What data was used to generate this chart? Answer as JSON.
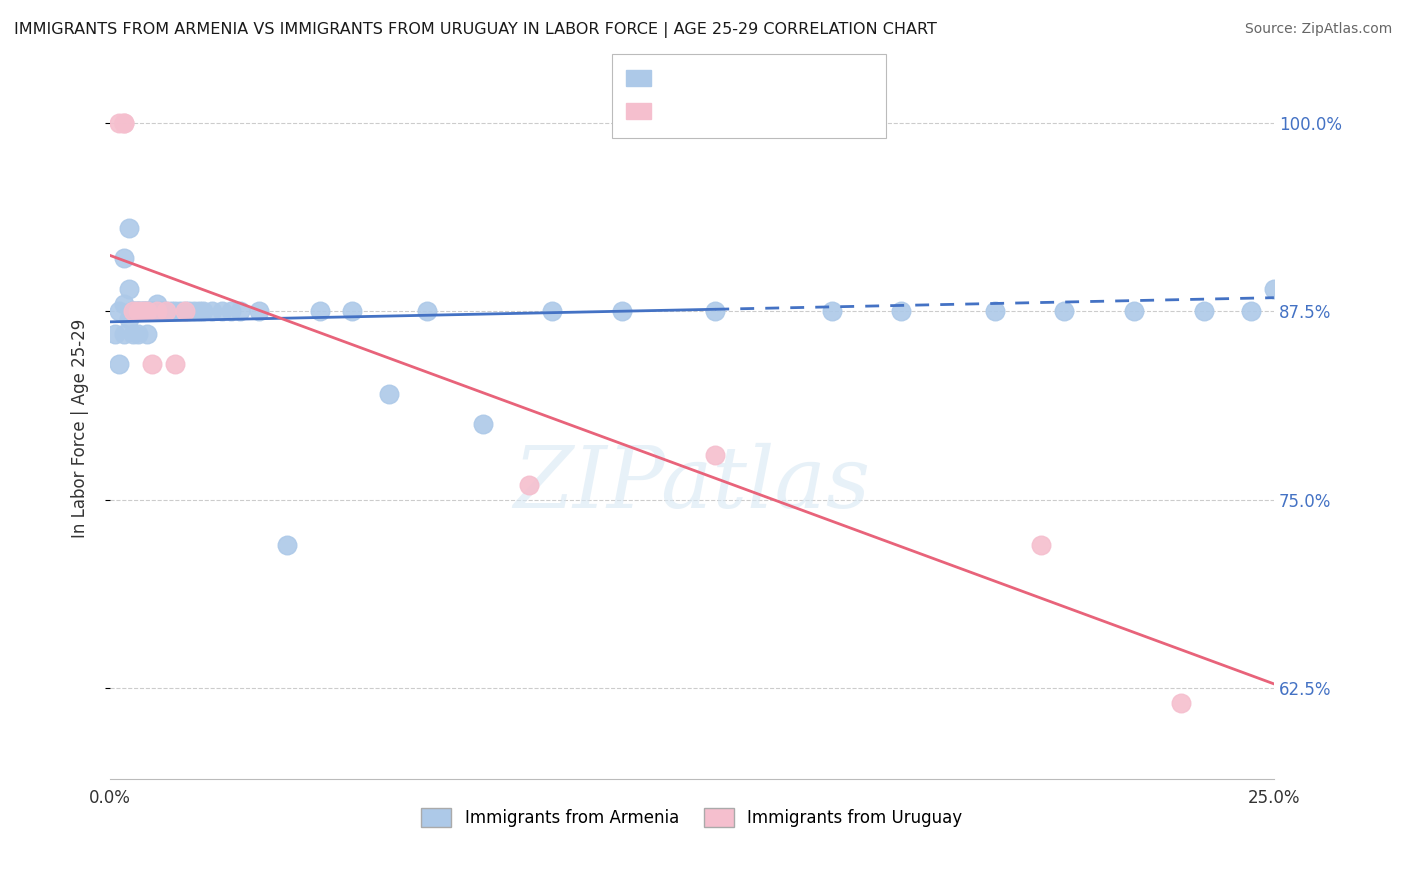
{
  "title": "IMMIGRANTS FROM ARMENIA VS IMMIGRANTS FROM URUGUAY IN LABOR FORCE | AGE 25-29 CORRELATION CHART",
  "source": "Source: ZipAtlas.com",
  "ylabel": "In Labor Force | Age 25-29",
  "ytick_labels": [
    "100.0%",
    "87.5%",
    "75.0%",
    "62.5%"
  ],
  "ytick_values": [
    1.0,
    0.875,
    0.75,
    0.625
  ],
  "legend_label1": "Immigrants from Armenia",
  "legend_label2": "Immigrants from Uruguay",
  "color_armenia": "#adc9e8",
  "color_uruguay": "#f5bfce",
  "line_color_armenia": "#4472c4",
  "line_color_uruguay": "#e8637a",
  "watermark": "ZIPatlas",
  "background_color": "#ffffff",
  "title_color": "#1a1a1a",
  "right_axis_label_color": "#4472c4",
  "armenia_x": [
    0.001,
    0.002,
    0.002,
    0.003,
    0.003,
    0.003,
    0.004,
    0.004,
    0.004,
    0.005,
    0.005,
    0.005,
    0.005,
    0.006,
    0.006,
    0.006,
    0.006,
    0.007,
    0.007,
    0.007,
    0.008,
    0.008,
    0.008,
    0.008,
    0.009,
    0.009,
    0.01,
    0.01,
    0.011,
    0.011,
    0.012,
    0.013,
    0.014,
    0.015,
    0.016,
    0.017,
    0.018,
    0.019,
    0.02,
    0.022,
    0.024,
    0.026,
    0.028,
    0.032,
    0.038,
    0.045,
    0.052,
    0.06,
    0.068,
    0.08,
    0.095,
    0.11,
    0.13,
    0.155,
    0.17,
    0.19,
    0.205,
    0.22,
    0.235,
    0.245,
    0.25
  ],
  "armenia_y": [
    0.86,
    0.875,
    0.84,
    0.91,
    0.88,
    0.86,
    0.93,
    0.89,
    0.87,
    0.875,
    0.875,
    0.875,
    0.86,
    0.875,
    0.875,
    0.875,
    0.86,
    0.875,
    0.875,
    0.875,
    0.875,
    0.875,
    0.875,
    0.86,
    0.875,
    0.875,
    0.88,
    0.875,
    0.875,
    0.875,
    0.875,
    0.875,
    0.875,
    0.875,
    0.875,
    0.875,
    0.875,
    0.875,
    0.875,
    0.875,
    0.875,
    0.875,
    0.875,
    0.875,
    0.72,
    0.875,
    0.875,
    0.82,
    0.875,
    0.8,
    0.875,
    0.875,
    0.875,
    0.875,
    0.875,
    0.875,
    0.875,
    0.875,
    0.875,
    0.875,
    0.89
  ],
  "uruguay_x": [
    0.002,
    0.003,
    0.003,
    0.005,
    0.006,
    0.007,
    0.008,
    0.009,
    0.01,
    0.012,
    0.014,
    0.016,
    0.09,
    0.13,
    0.2,
    0.23
  ],
  "uruguay_y": [
    1.0,
    1.0,
    1.0,
    0.875,
    0.875,
    0.875,
    0.875,
    0.84,
    0.875,
    0.875,
    0.84,
    0.875,
    0.76,
    0.78,
    0.72,
    0.615
  ],
  "armenia_line_x": [
    0.0,
    0.25
  ],
  "armenia_line_y": [
    0.868,
    0.884
  ],
  "armenia_line_solid_end": 0.13,
  "uruguay_line_x": [
    0.0,
    0.25
  ],
  "uruguay_line_y": [
    0.912,
    0.628
  ],
  "xmin": 0.0,
  "xmax": 0.25,
  "ymin": 0.565,
  "ymax": 1.03,
  "grid_color": "#cccccc",
  "xtick_positions": [
    0.0,
    0.05,
    0.1,
    0.15,
    0.2,
    0.25
  ],
  "xtick_labels": [
    "0.0%",
    "",
    "",
    "",
    "",
    "25.0%"
  ]
}
